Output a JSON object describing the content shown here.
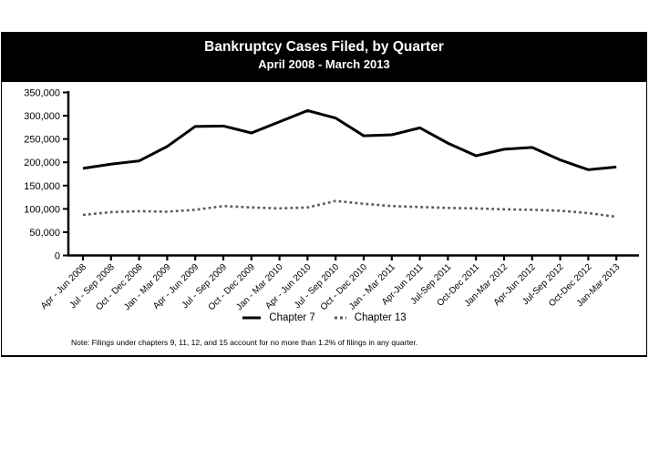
{
  "title_bar": {
    "title": "Bankruptcy Cases Filed, by Quarter",
    "subtitle": "April 2008 - March 2013"
  },
  "chart_data": {
    "type": "line",
    "title": "Bankruptcy Cases Filed, by Quarter",
    "subtitle": "April 2008 - March 2013",
    "categories": [
      "Apr - Jun 2008",
      "Jul - Sep 2008",
      "Oct - Dec 2008",
      "Jan - Mar 2009",
      "Apr - Jun 2009",
      "Jul - Sep 2009",
      "Oct - Dec 2009",
      "Jan - Mar 2010",
      "Apr - Jun 2010",
      "Jul - Sep 2010",
      "Oct - Dec 2010",
      "Jan - Mar 2011",
      "Apr-Jun 2011",
      "Jul-Sep 2011",
      "Oct-Dec 2011",
      "Jan-Mar 2012",
      "Apr-Jun 2012",
      "Jul-Sep 2012",
      "Oct-Dec 2012",
      "Jan-Mar 2013"
    ],
    "series": [
      {
        "name": "Chapter 7",
        "style": "solid",
        "color": "#000000",
        "values": [
          187000,
          196000,
          203000,
          234000,
          277000,
          278000,
          263000,
          287000,
          311000,
          295000,
          257000,
          259000,
          274000,
          241000,
          214000,
          228000,
          232000,
          205000,
          184000,
          190000
        ]
      },
      {
        "name": "Chapter 13",
        "style": "dashed",
        "color": "#595959",
        "values": [
          87000,
          93000,
          95000,
          94000,
          98000,
          106000,
          103000,
          101000,
          103000,
          117000,
          111000,
          106000,
          104000,
          102000,
          101000,
          99000,
          98000,
          96000,
          91000,
          83000
        ]
      }
    ],
    "ylim": [
      0,
      350000
    ],
    "y_tick_step": 50000,
    "y_ticks": [
      {
        "label": "350,000",
        "value": 350000
      },
      {
        "label": "300,000",
        "value": 300000
      },
      {
        "label": "250,000",
        "value": 250000
      },
      {
        "label": "200,000",
        "value": 200000
      },
      {
        "label": "150,000",
        "value": 150000
      },
      {
        "label": "100,000",
        "value": 100000
      },
      {
        "label": "50,000",
        "value": 50000
      },
      {
        "label": "0",
        "value": 0
      }
    ],
    "grid": false,
    "legend_position": "bottom-center"
  },
  "legend": {
    "items": [
      {
        "label": "Chapter 7"
      },
      {
        "label": "Chapter 13"
      }
    ]
  },
  "note": "Note: Filings under chapters 9, 11, 12, and 15 account for no more than 1.2% of filings in any quarter.",
  "colors": {
    "title_bar_bg": "#000000",
    "title_text": "#ffffff",
    "chapter7_line": "#000000",
    "chapter13_line": "#595959",
    "axis": "#000000",
    "panel_border": "#000000"
  }
}
